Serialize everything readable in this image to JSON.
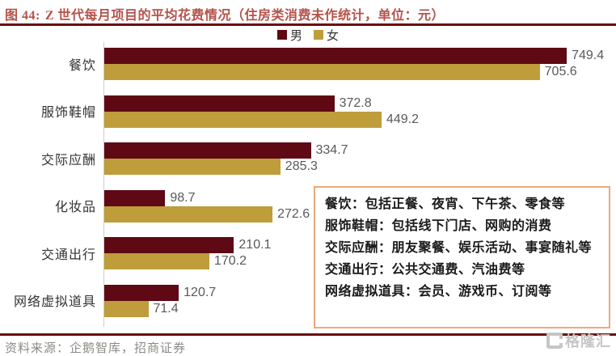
{
  "title": {
    "prefix": "图 44:",
    "text": "Z 世代每月项目的平均花费情况（住房类消费未作统计，单位：元）"
  },
  "legend": {
    "male_label": "男",
    "female_label": "女"
  },
  "chart_data": {
    "type": "bar",
    "orientation": "horizontal",
    "title": "Z 世代每月项目的平均花费情况（住房类消费未作统计，单位：元）",
    "categories": [
      "餐饮",
      "服饰鞋帽",
      "交际应酬",
      "化妆品",
      "交通出行",
      "网络虚拟道具"
    ],
    "series": [
      {
        "name": "男",
        "color": "#5e0913",
        "values": [
          749.4,
          372.8,
          334.7,
          98.7,
          210.1,
          120.7
        ]
      },
      {
        "name": "女",
        "color": "#bf9d3b",
        "values": [
          705.6,
          449.2,
          285.3,
          272.6,
          170.2,
          71.4
        ]
      }
    ],
    "xlim": [
      0,
      820
    ],
    "grid": false,
    "legend_position": "top-center",
    "value_labels": true
  },
  "annotation_box": {
    "lines": [
      "餐饮：包括正餐、夜宵、下午茶、零食等",
      "服饰鞋帽：包括线下门店、网购的消费",
      "交际应酬：朋友聚餐、娱乐活动、事宴随礼等",
      "交通出行：公共交通费、汽油费等",
      "网络虚拟道具：会员、游戏币、订阅等"
    ],
    "border_color": "#eda87e"
  },
  "footer": {
    "source": "资料来源：企鹅智库，招商证券",
    "logo_text": "格隆汇"
  },
  "colors": {
    "title": "#b5524b",
    "divider": "#6b0a10",
    "male_bar": "#5e0913",
    "female_bar": "#bf9d3b",
    "value_label": "#595959",
    "axis_line": "#cccccc"
  }
}
